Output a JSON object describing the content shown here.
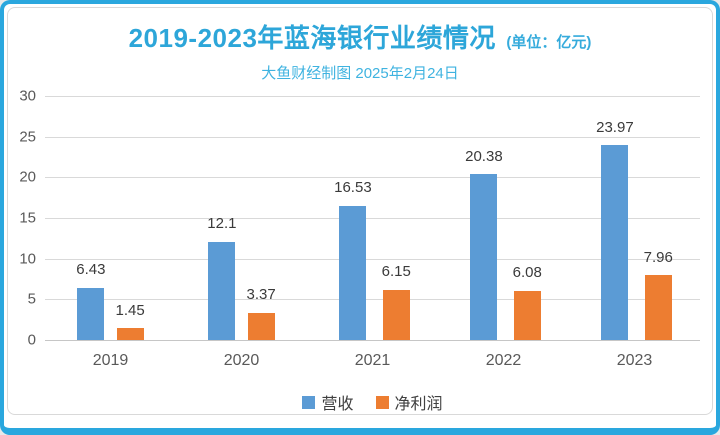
{
  "header": {
    "title": "2019-2023年蓝海银行业绩情况",
    "unit_label": "(单位：亿元)",
    "subtitle": "大鱼财经制图 2025年2月24日"
  },
  "colors": {
    "border_accent": "#2aa7de",
    "title_text": "#2da6d9",
    "subtitle_text": "#3fb3e0",
    "gridline": "#d9d9d9",
    "axis_text": "#595959",
    "data_label_text": "#3a3a3a",
    "series_revenue": "#5b9bd5",
    "series_profit": "#ed7d31"
  },
  "chart_data": {
    "type": "bar",
    "title": "2019-2023年蓝海银行业绩情况",
    "unit": "亿元",
    "subtitle": "大鱼财经制图 2025年2月24日",
    "categories": [
      "2019",
      "2020",
      "2021",
      "2022",
      "2023"
    ],
    "series": [
      {
        "name": "营收",
        "color": "#5b9bd5",
        "values": [
          6.43,
          12.1,
          16.53,
          20.38,
          23.97
        ]
      },
      {
        "name": "净利润",
        "color": "#ed7d31",
        "values": [
          1.45,
          3.37,
          6.15,
          6.08,
          7.96
        ]
      }
    ],
    "ylim": [
      0,
      30
    ],
    "yticks": [
      0,
      5,
      10,
      15,
      20,
      25,
      30
    ],
    "grid": true,
    "data_labels": true,
    "legend_position": "bottom"
  }
}
